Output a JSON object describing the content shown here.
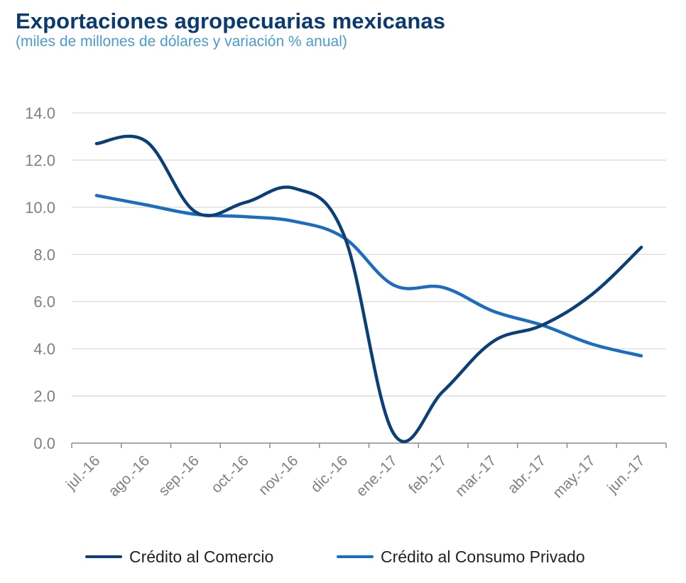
{
  "title": "Exportaciones agropecuarias mexicanas",
  "subtitle": "(miles de millones de dólares y variación % anual)",
  "colors": {
    "series_1": "#0b3f78",
    "series_2": "#1c6cc0",
    "grid": "#d9d9d9",
    "axis": "#8c8c8c",
    "tick_text": "#7f7f7f"
  },
  "chart_data": {
    "type": "line",
    "title": "Exportaciones agropecuarias mexicanas",
    "subtitle": "(miles de millones de dólares y variación % anual)",
    "xlabel": "",
    "ylabel": "",
    "ylim": [
      0,
      14
    ],
    "yticks": [
      "0.0",
      "2.0",
      "4.0",
      "6.0",
      "8.0",
      "10.0",
      "12.0",
      "14.0"
    ],
    "grid": true,
    "legend_position": "bottom",
    "categories": [
      "jul.-16",
      "ago.-16",
      "sep.-16",
      "oct.-16",
      "nov.-16",
      "dic.-16",
      "ene.-17",
      "feb.-17",
      "mar.-17",
      "abr.-17",
      "may.-17",
      "jun.-17"
    ],
    "series": [
      {
        "name": "Crédito al Comercio",
        "values": [
          12.7,
          12.8,
          9.8,
          10.2,
          10.8,
          8.8,
          0.4,
          2.2,
          4.3,
          5.0,
          6.3,
          8.3
        ]
      },
      {
        "name": "Crédito al Consumo Privado",
        "values": [
          10.5,
          10.1,
          9.7,
          9.6,
          9.4,
          8.7,
          6.7,
          6.6,
          5.6,
          5.0,
          4.2,
          3.7
        ]
      }
    ]
  }
}
